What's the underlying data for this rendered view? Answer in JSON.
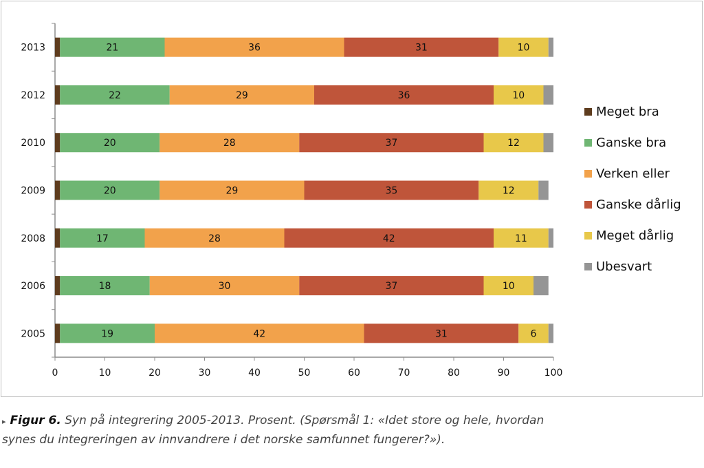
{
  "chart_data": {
    "type": "bar",
    "orientation": "horizontal",
    "stacked": true,
    "title": "",
    "xlabel": "",
    "ylabel": "",
    "xlim": [
      0,
      100
    ],
    "x_ticks": [
      "0",
      "10",
      "20",
      "30",
      "40",
      "50",
      "60",
      "70",
      "80",
      "90",
      "100"
    ],
    "categories": [
      "2013",
      "2012",
      "2010",
      "2009",
      "2008",
      "2006",
      "2005"
    ],
    "series": [
      {
        "name": "Meget bra",
        "color": "#5e3c1e",
        "values": [
          1,
          1,
          1,
          1,
          1,
          1,
          1
        ]
      },
      {
        "name": "Ganske bra",
        "color": "#6fb673",
        "values": [
          21,
          22,
          20,
          20,
          17,
          18,
          19
        ]
      },
      {
        "name": "Verken eller",
        "color": "#f2a24b",
        "values": [
          36,
          29,
          28,
          29,
          28,
          30,
          42
        ]
      },
      {
        "name": "Ganske dårlig",
        "color": "#bf553a",
        "values": [
          31,
          36,
          37,
          35,
          42,
          37,
          31
        ]
      },
      {
        "name": "Meget dårlig",
        "color": "#e8c84a",
        "values": [
          10,
          10,
          12,
          12,
          11,
          10,
          6
        ]
      },
      {
        "name": "Ubesvart",
        "color": "#959595",
        "values": [
          1,
          2,
          2,
          2,
          1,
          3,
          1
        ]
      }
    ],
    "labeled_series": [
      "Ganske bra",
      "Verken eller",
      "Ganske dårlig",
      "Meget dårlig"
    ],
    "legend_position": "right",
    "grid": false
  },
  "caption": {
    "marker": "▸",
    "figure_label": "Figur 6.",
    "text_line1": " Syn på integrering 2005-2013. Prosent. (Spørsmål 1: «Idet store og hele, hvordan",
    "text_line2": "synes du integreringen av innvandrere i det norske samfunnet fungerer?»)."
  }
}
